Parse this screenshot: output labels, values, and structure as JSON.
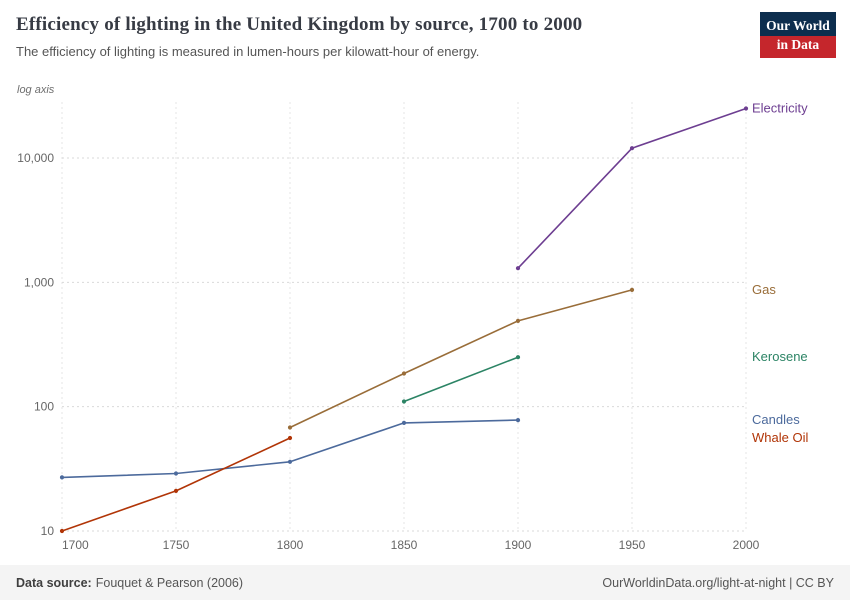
{
  "header": {
    "title": "Efficiency of lighting in the United Kingdom by source, 1700 to 2000",
    "subtitle": "The efficiency of lighting is measured in lumen-hours per kilowatt-hour of energy.",
    "logo": {
      "line1": "Our World",
      "line2": "in Data",
      "bg_color": "#0d2e4e",
      "accent_color": "#c5262c"
    }
  },
  "chart_data": {
    "type": "line",
    "title": "Efficiency of lighting in the United Kingdom by source, 1700 to 2000",
    "y_axis_note": "log axis",
    "log_y": true,
    "grid": true,
    "xlim": [
      1700,
      2000
    ],
    "ylim": [
      10,
      30000
    ],
    "xlabel": "",
    "ylabel": "",
    "x_ticks": [
      1700,
      1750,
      1800,
      1850,
      1900,
      1950,
      2000
    ],
    "y_ticks": [
      10,
      100,
      1000,
      10000
    ],
    "y_tick_labels": [
      "10",
      "100",
      "1,000",
      "10,000"
    ],
    "legend_position": "right-edge-labels",
    "series": [
      {
        "name": "Electricity",
        "color": "#6D3E91",
        "points": [
          [
            1900,
            1300
          ],
          [
            1950,
            12000
          ],
          [
            2000,
            25000
          ]
        ]
      },
      {
        "name": "Gas",
        "color": "#996D39",
        "points": [
          [
            1800,
            68
          ],
          [
            1850,
            185
          ],
          [
            1900,
            490
          ],
          [
            1950,
            870
          ]
        ]
      },
      {
        "name": "Kerosene",
        "color": "#2C8465",
        "points": [
          [
            1850,
            110
          ],
          [
            1900,
            250
          ]
        ]
      },
      {
        "name": "Candles",
        "color": "#4C6A9C",
        "points": [
          [
            1700,
            27
          ],
          [
            1750,
            29
          ],
          [
            1800,
            36
          ],
          [
            1850,
            74
          ],
          [
            1900,
            78
          ]
        ]
      },
      {
        "name": "Whale Oil",
        "color": "#B13507",
        "points": [
          [
            1700,
            10
          ],
          [
            1750,
            21
          ],
          [
            1800,
            56
          ]
        ]
      }
    ]
  },
  "footer": {
    "source_label": "Data source:",
    "source_value": "Fouquet & Pearson (2006)",
    "right_text": "OurWorldinData.org/light-at-night | CC BY"
  }
}
